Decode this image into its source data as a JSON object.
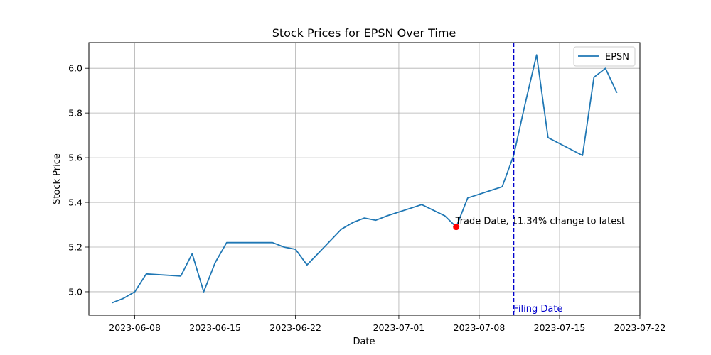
{
  "chart_data": {
    "type": "line",
    "title": "Stock Prices for EPSN Over Time",
    "xlabel": "Date",
    "ylabel": "Stock Price",
    "grid": true,
    "legend": {
      "placement": "top-right",
      "entries": [
        "EPSN"
      ]
    },
    "xlim": [
      "2023-06-04",
      "2023-07-22"
    ],
    "ylim": [
      4.895,
      6.115
    ],
    "x_ticks": [
      "2023-06-08",
      "2023-06-15",
      "2023-06-22",
      "2023-07-01",
      "2023-07-08",
      "2023-07-15",
      "2023-07-22"
    ],
    "y_ticks": [
      "5.0",
      "5.2",
      "5.4",
      "5.6",
      "5.8",
      "6.0"
    ],
    "series": [
      {
        "name": "EPSN",
        "color": "#1f77b4",
        "x": [
          "2023-06-06",
          "2023-06-07",
          "2023-06-08",
          "2023-06-09",
          "2023-06-12",
          "2023-06-13",
          "2023-06-14",
          "2023-06-15",
          "2023-06-16",
          "2023-06-20",
          "2023-06-21",
          "2023-06-22",
          "2023-06-23",
          "2023-06-26",
          "2023-06-27",
          "2023-06-28",
          "2023-06-29",
          "2023-06-30",
          "2023-07-03",
          "2023-07-05",
          "2023-07-06",
          "2023-07-07",
          "2023-07-10",
          "2023-07-11",
          "2023-07-12",
          "2023-07-13",
          "2023-07-14",
          "2023-07-17",
          "2023-07-18",
          "2023-07-19",
          "2023-07-20"
        ],
        "values": [
          4.95,
          4.97,
          5.0,
          5.08,
          5.07,
          5.17,
          5.0,
          5.13,
          5.22,
          5.22,
          5.2,
          5.19,
          5.12,
          5.28,
          5.31,
          5.33,
          5.32,
          5.34,
          5.39,
          5.34,
          5.29,
          5.42,
          5.47,
          5.61,
          5.84,
          6.06,
          5.69,
          5.61,
          5.96,
          6.0,
          5.89
        ]
      }
    ],
    "annotations": [
      {
        "type": "point",
        "x": "2023-07-06",
        "y": 5.29,
        "color": "#ff0000",
        "label": "Trade Date, 11.34% change to latest"
      },
      {
        "type": "vline",
        "x": "2023-07-11",
        "color": "#0000cc",
        "style": "dashed",
        "label": "Filing Date"
      }
    ]
  }
}
